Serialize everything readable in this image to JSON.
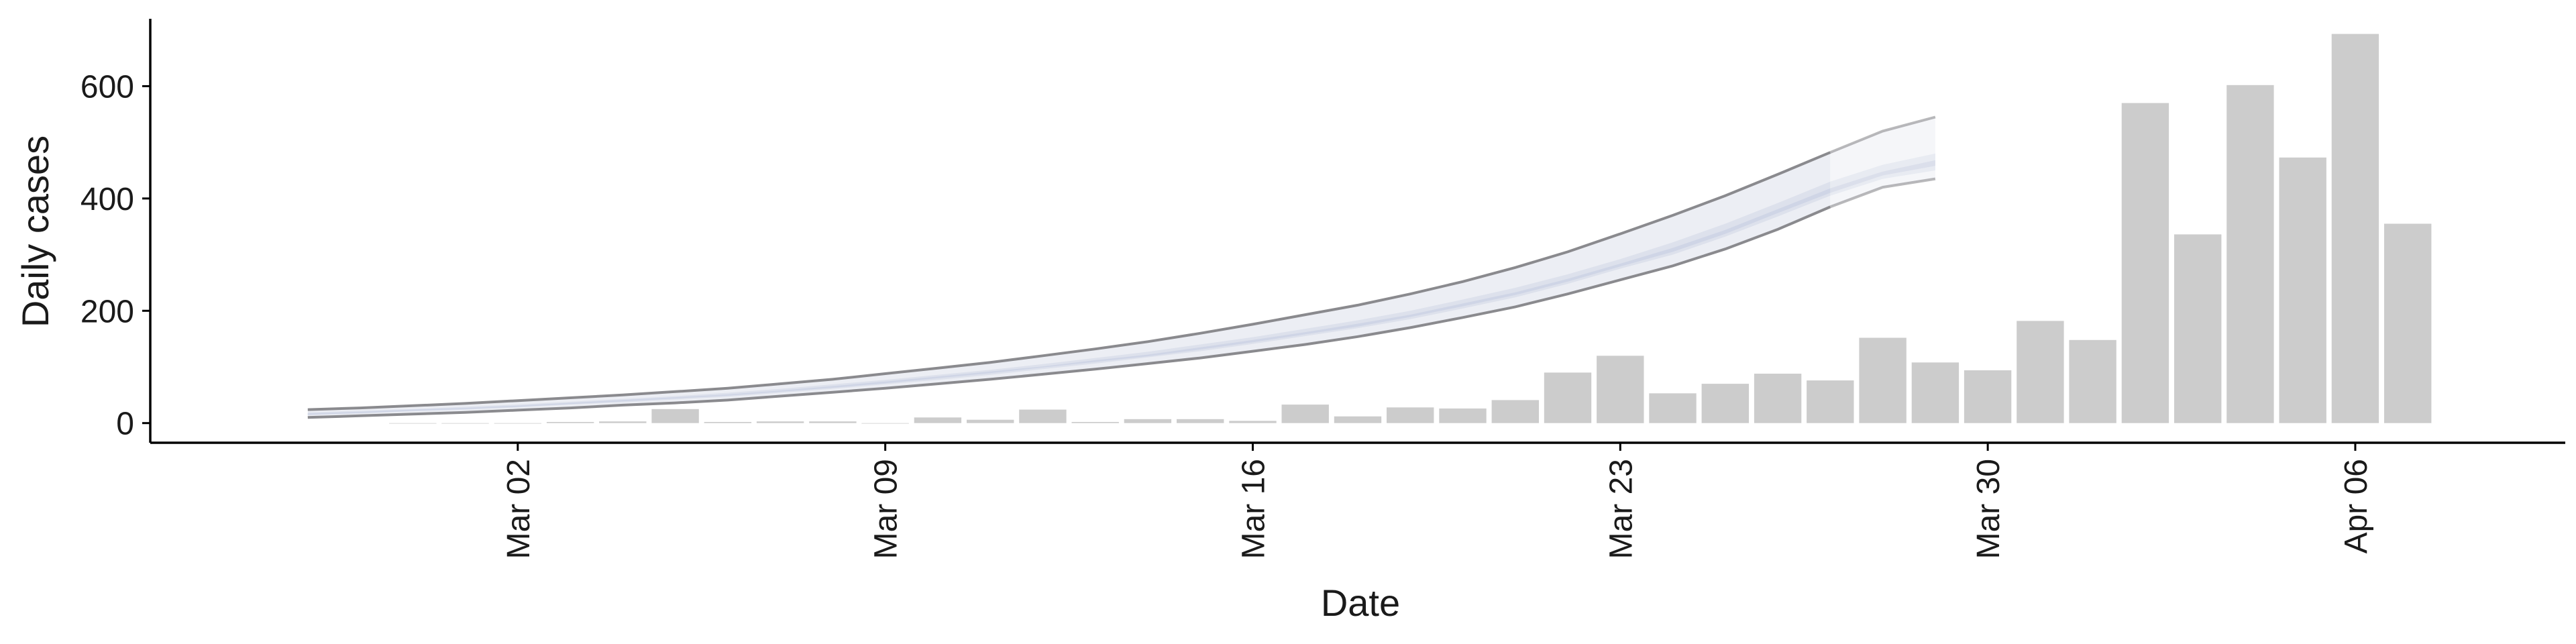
{
  "chart_data": {
    "type": "bar",
    "xlabel": "Date",
    "ylabel": "Daily cases",
    "x_tick_labels": [
      "Mar 02",
      "Mar 09",
      "Mar 16",
      "Mar 23",
      "Mar 30",
      "Apr 06"
    ],
    "x_tick_dates": [
      "2020-03-02",
      "2020-03-09",
      "2020-03-16",
      "2020-03-23",
      "2020-03-30",
      "2020-04-06"
    ],
    "y_ticks": [
      0,
      200,
      400,
      600
    ],
    "xlim": [
      "2020-02-24",
      "2020-04-10"
    ],
    "ylim": [
      -35,
      720
    ],
    "grid": false,
    "legend": "none",
    "bars": {
      "dates": [
        "2020-02-29",
        "2020-03-01",
        "2020-03-02",
        "2020-03-03",
        "2020-03-04",
        "2020-03-05",
        "2020-03-06",
        "2020-03-07",
        "2020-03-08",
        "2020-03-09",
        "2020-03-10",
        "2020-03-11",
        "2020-03-12",
        "2020-03-13",
        "2020-03-14",
        "2020-03-15",
        "2020-03-16",
        "2020-03-17",
        "2020-03-18",
        "2020-03-19",
        "2020-03-20",
        "2020-03-21",
        "2020-03-22",
        "2020-03-23",
        "2020-03-24",
        "2020-03-25",
        "2020-03-26",
        "2020-03-27",
        "2020-03-28",
        "2020-03-29",
        "2020-03-30",
        "2020-03-31",
        "2020-04-01",
        "2020-04-02",
        "2020-04-03",
        "2020-04-04",
        "2020-04-05",
        "2020-04-06",
        "2020-04-07"
      ],
      "values": [
        0,
        0,
        0,
        2,
        3,
        25,
        2,
        3,
        3,
        0,
        10,
        6,
        24,
        2,
        7,
        7,
        4,
        33,
        12,
        28,
        26,
        41,
        90,
        120,
        53,
        70,
        88,
        76,
        152,
        108,
        94,
        182,
        148,
        570,
        336,
        602,
        473,
        693,
        355
      ],
      "color": "#cccccc"
    },
    "estimate": {
      "dates": [
        "2020-02-27",
        "2020-02-28",
        "2020-02-29",
        "2020-03-01",
        "2020-03-02",
        "2020-03-03",
        "2020-03-04",
        "2020-03-05",
        "2020-03-06",
        "2020-03-07",
        "2020-03-08",
        "2020-03-09",
        "2020-03-10",
        "2020-03-11",
        "2020-03-12",
        "2020-03-13",
        "2020-03-14",
        "2020-03-15",
        "2020-03-16",
        "2020-03-17",
        "2020-03-18",
        "2020-03-19",
        "2020-03-20",
        "2020-03-21",
        "2020-03-22",
        "2020-03-23",
        "2020-03-24",
        "2020-03-25",
        "2020-03-26",
        "2020-03-27",
        "2020-03-28",
        "2020-03-29"
      ],
      "upper90": [
        24,
        27,
        31,
        35,
        40,
        45,
        50,
        56,
        62,
        70,
        78,
        88,
        98,
        108,
        120,
        132,
        145,
        160,
        176,
        193,
        210,
        230,
        252,
        277,
        305,
        337,
        370,
        405,
        443,
        482,
        520,
        545
      ],
      "lower90": [
        10,
        13,
        16,
        19,
        23,
        27,
        32,
        36,
        41,
        48,
        55,
        62,
        70,
        78,
        87,
        96,
        106,
        116,
        128,
        140,
        154,
        170,
        188,
        207,
        230,
        255,
        280,
        310,
        345,
        385,
        420,
        435
      ],
      "upper50": [
        19,
        22,
        25,
        29,
        33,
        38,
        43,
        48,
        54,
        61,
        69,
        77,
        86,
        95,
        105,
        116,
        127,
        140,
        153,
        168,
        183,
        200,
        220,
        241,
        265,
        292,
        322,
        355,
        392,
        430,
        460,
        480
      ],
      "lower50": [
        14,
        17,
        21,
        24,
        28,
        33,
        37,
        42,
        47,
        54,
        61,
        69,
        77,
        86,
        96,
        106,
        117,
        128,
        141,
        155,
        169,
        185,
        204,
        224,
        248,
        275,
        300,
        332,
        368,
        405,
        435,
        450
      ],
      "upper20": [
        17,
        20,
        24,
        27,
        31,
        36,
        41,
        46,
        51,
        58,
        66,
        74,
        83,
        92,
        101,
        112,
        122,
        135,
        148,
        162,
        177,
        193,
        213,
        233,
        257,
        284,
        312,
        344,
        381,
        418,
        448,
        468
      ],
      "lower20": [
        15,
        18,
        22,
        25,
        29,
        34,
        39,
        44,
        49,
        56,
        63,
        71,
        80,
        89,
        99,
        109,
        119,
        131,
        144,
        158,
        172,
        189,
        208,
        228,
        252,
        279,
        305,
        337,
        374,
        410,
        441,
        458
      ],
      "forecast_start": "2020-03-27",
      "colors": {
        "band90": "#eceef4",
        "band50": "#dde1ec",
        "band20": "#cfd5e6",
        "line": "#8a8a8e"
      }
    }
  }
}
